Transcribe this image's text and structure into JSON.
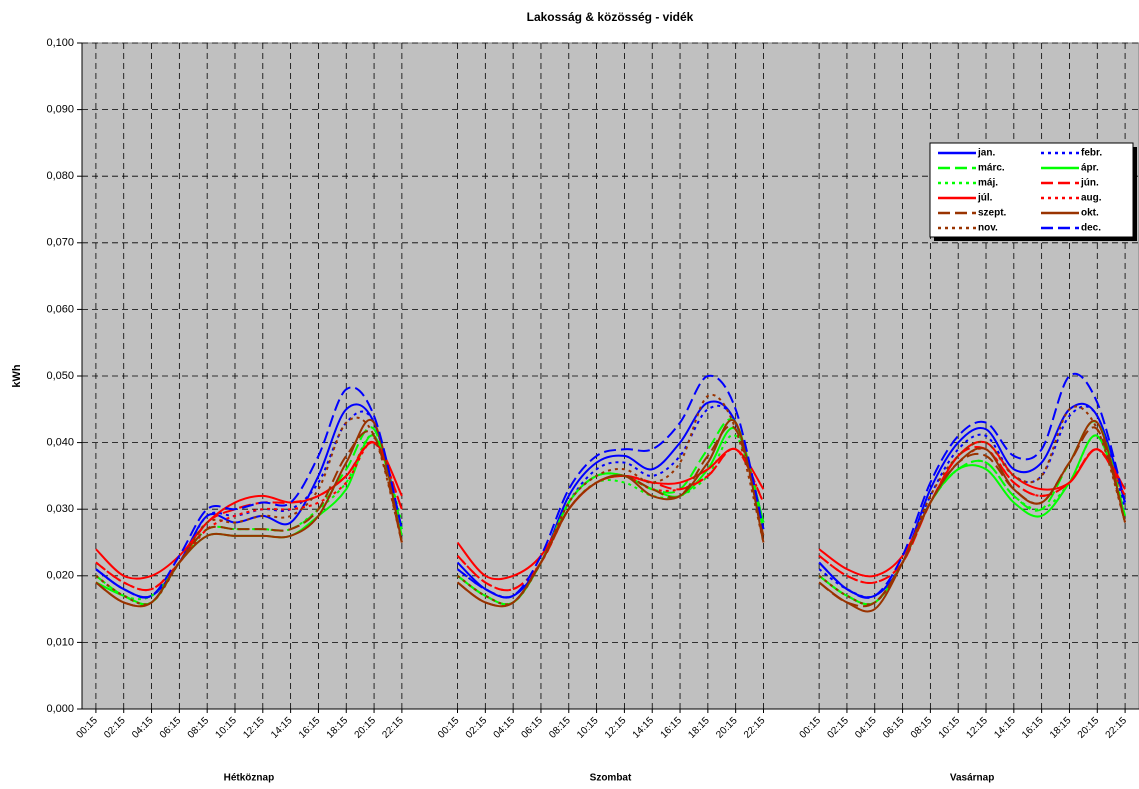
{
  "chart_data": {
    "type": "line",
    "title": "Lakosság & közösség - vidék",
    "y_label": "kWh",
    "group_labels": [
      "Hétköznap",
      "Szombat",
      "Vasárnap"
    ],
    "categories": [
      "00:15",
      "02:15",
      "04:15",
      "06:15",
      "08:15",
      "10:15",
      "12:15",
      "14:15",
      "16:15",
      "18:15",
      "20:15",
      "22:15",
      null,
      "00:15",
      "02:15",
      "04:15",
      "06:15",
      "08:15",
      "10:15",
      "12:15",
      "14:15",
      "16:15",
      "18:15",
      "20:15",
      "22:15",
      null,
      "00:15",
      "02:15",
      "04:15",
      "06:15",
      "08:15",
      "10:15",
      "12:15",
      "14:15",
      "16:15",
      "18:15",
      "20:15",
      "22:15"
    ],
    "ylim": [
      0,
      0.1
    ],
    "yticks": [
      {
        "value": 0,
        "label": "0,000"
      },
      {
        "value": 0.01,
        "label": "0,010"
      },
      {
        "value": 0.02,
        "label": "0,020"
      },
      {
        "value": 0.03,
        "label": "0,030"
      },
      {
        "value": 0.04,
        "label": "0,040"
      },
      {
        "value": 0.05,
        "label": "0,050"
      },
      {
        "value": 0.06,
        "label": "0,060"
      },
      {
        "value": 0.07,
        "label": "0,070"
      },
      {
        "value": 0.08,
        "label": "0,080"
      },
      {
        "value": 0.09,
        "label": "0,090"
      },
      {
        "value": 0.1,
        "label": "0,100"
      }
    ],
    "grid": true,
    "legend": "upper right",
    "series": [
      {
        "name": "jan.",
        "color": "#0000ff",
        "dash": "solid",
        "values": [
          0.021,
          0.018,
          0.017,
          0.022,
          0.029,
          0.028,
          0.029,
          0.028,
          0.035,
          0.045,
          0.043,
          0.027,
          null,
          0.022,
          0.018,
          0.017,
          0.022,
          0.032,
          0.037,
          0.038,
          0.036,
          0.04,
          0.046,
          0.043,
          0.028,
          null,
          0.022,
          0.018,
          0.017,
          0.022,
          0.033,
          0.04,
          0.042,
          0.036,
          0.037,
          0.045,
          0.044,
          0.031
        ]
      },
      {
        "name": "febr.",
        "color": "#0000ff",
        "dash": "dotted",
        "values": [
          0.021,
          0.018,
          0.017,
          0.022,
          0.029,
          0.029,
          0.03,
          0.03,
          0.034,
          0.043,
          0.043,
          0.026,
          null,
          0.021,
          0.018,
          0.017,
          0.022,
          0.031,
          0.036,
          0.037,
          0.035,
          0.038,
          0.045,
          0.043,
          0.027,
          null,
          0.021,
          0.018,
          0.017,
          0.022,
          0.032,
          0.039,
          0.041,
          0.035,
          0.035,
          0.044,
          0.044,
          0.03
        ]
      },
      {
        "name": "márc.",
        "color": "#00ff00",
        "dash": "dashed",
        "values": [
          0.02,
          0.017,
          0.016,
          0.022,
          0.027,
          0.027,
          0.027,
          0.027,
          0.03,
          0.036,
          0.042,
          0.026,
          null,
          0.02,
          0.017,
          0.016,
          0.022,
          0.031,
          0.035,
          0.035,
          0.033,
          0.033,
          0.039,
          0.043,
          0.027,
          null,
          0.02,
          0.017,
          0.016,
          0.022,
          0.031,
          0.036,
          0.037,
          0.032,
          0.03,
          0.037,
          0.043,
          0.029
        ]
      },
      {
        "name": "ápr.",
        "color": "#00ff00",
        "dash": "solid",
        "values": [
          0.019,
          0.017,
          0.016,
          0.022,
          0.026,
          0.026,
          0.026,
          0.026,
          0.029,
          0.033,
          0.041,
          0.027,
          null,
          0.02,
          0.017,
          0.016,
          0.022,
          0.031,
          0.035,
          0.035,
          0.033,
          0.032,
          0.036,
          0.042,
          0.028,
          null,
          0.02,
          0.017,
          0.016,
          0.022,
          0.031,
          0.036,
          0.036,
          0.031,
          0.029,
          0.034,
          0.041,
          0.029
        ]
      },
      {
        "name": "máj.",
        "color": "#00ff00",
        "dash": "dotted",
        "values": [
          0.02,
          0.017,
          0.017,
          0.022,
          0.027,
          0.027,
          0.027,
          0.027,
          0.03,
          0.034,
          0.041,
          0.028,
          null,
          0.02,
          0.017,
          0.016,
          0.022,
          0.03,
          0.034,
          0.034,
          0.032,
          0.032,
          0.035,
          0.041,
          0.028,
          null,
          0.02,
          0.017,
          0.016,
          0.022,
          0.031,
          0.036,
          0.037,
          0.032,
          0.03,
          0.034,
          0.041,
          0.029
        ]
      },
      {
        "name": "jún.",
        "color": "#ff0000",
        "dash": "dashed",
        "values": [
          0.022,
          0.019,
          0.018,
          0.022,
          0.028,
          0.03,
          0.031,
          0.031,
          0.032,
          0.035,
          0.04,
          0.03,
          null,
          0.023,
          0.019,
          0.018,
          0.022,
          0.03,
          0.034,
          0.035,
          0.034,
          0.033,
          0.035,
          0.039,
          0.031,
          null,
          0.023,
          0.02,
          0.019,
          0.022,
          0.031,
          0.038,
          0.039,
          0.034,
          0.032,
          0.034,
          0.039,
          0.032
        ]
      },
      {
        "name": "júl.",
        "color": "#ff0000",
        "dash": "solid",
        "values": [
          0.024,
          0.02,
          0.02,
          0.023,
          0.028,
          0.031,
          0.032,
          0.031,
          0.032,
          0.035,
          0.04,
          0.032,
          null,
          0.025,
          0.02,
          0.02,
          0.023,
          0.03,
          0.034,
          0.035,
          0.034,
          0.034,
          0.036,
          0.039,
          0.033,
          null,
          0.024,
          0.021,
          0.02,
          0.023,
          0.031,
          0.038,
          0.04,
          0.035,
          0.033,
          0.034,
          0.039,
          0.033
        ]
      },
      {
        "name": "aug.",
        "color": "#ff0000",
        "dash": "dotted",
        "values": [
          0.022,
          0.019,
          0.018,
          0.022,
          0.027,
          0.029,
          0.03,
          0.03,
          0.031,
          0.034,
          0.04,
          0.03,
          null,
          0.023,
          0.019,
          0.018,
          0.022,
          0.03,
          0.034,
          0.035,
          0.033,
          0.033,
          0.035,
          0.039,
          0.031,
          null,
          0.023,
          0.02,
          0.019,
          0.022,
          0.031,
          0.037,
          0.039,
          0.034,
          0.032,
          0.034,
          0.039,
          0.032
        ]
      },
      {
        "name": "szept.",
        "color": "#993300",
        "dash": "dashed",
        "values": [
          0.019,
          0.016,
          0.016,
          0.022,
          0.027,
          0.027,
          0.027,
          0.027,
          0.03,
          0.038,
          0.041,
          0.025,
          null,
          0.019,
          0.016,
          0.016,
          0.022,
          0.03,
          0.034,
          0.035,
          0.033,
          0.032,
          0.038,
          0.042,
          0.026,
          null,
          0.019,
          0.016,
          0.016,
          0.022,
          0.031,
          0.037,
          0.038,
          0.033,
          0.031,
          0.037,
          0.042,
          0.028
        ]
      },
      {
        "name": "okt.",
        "color": "#993300",
        "dash": "solid",
        "values": [
          0.019,
          0.016,
          0.016,
          0.022,
          0.026,
          0.026,
          0.026,
          0.026,
          0.029,
          0.037,
          0.043,
          0.025,
          null,
          0.019,
          0.016,
          0.016,
          0.022,
          0.03,
          0.034,
          0.035,
          0.032,
          0.032,
          0.037,
          0.043,
          0.025,
          null,
          0.019,
          0.016,
          0.015,
          0.022,
          0.031,
          0.037,
          0.039,
          0.033,
          0.031,
          0.037,
          0.043,
          0.028
        ]
      },
      {
        "name": "nov.",
        "color": "#993300",
        "dash": "dotted",
        "values": [
          0.02,
          0.017,
          0.016,
          0.022,
          0.028,
          0.028,
          0.029,
          0.029,
          0.033,
          0.043,
          0.041,
          0.025,
          null,
          0.02,
          0.017,
          0.016,
          0.022,
          0.031,
          0.035,
          0.036,
          0.034,
          0.037,
          0.047,
          0.042,
          0.025,
          null,
          0.02,
          0.017,
          0.016,
          0.022,
          0.032,
          0.038,
          0.04,
          0.035,
          0.035,
          0.045,
          0.042,
          0.028
        ]
      },
      {
        "name": "dec.",
        "color": "#0000ff",
        "dash": "dashed",
        "values": [
          0.021,
          0.018,
          0.017,
          0.023,
          0.03,
          0.03,
          0.031,
          0.031,
          0.038,
          0.048,
          0.044,
          0.027,
          null,
          0.021,
          0.018,
          0.017,
          0.023,
          0.033,
          0.038,
          0.039,
          0.039,
          0.043,
          0.05,
          0.045,
          0.027,
          null,
          0.022,
          0.018,
          0.017,
          0.023,
          0.034,
          0.041,
          0.043,
          0.038,
          0.039,
          0.05,
          0.046,
          0.031
        ]
      }
    ]
  }
}
